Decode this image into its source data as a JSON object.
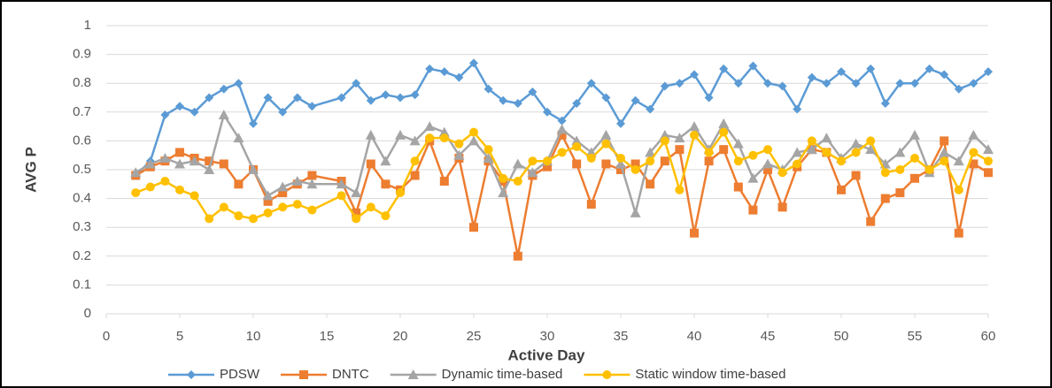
{
  "chart_data": {
    "type": "line",
    "x_label": "Active Day",
    "y_label": "AVG P",
    "x": [
      2,
      3,
      4,
      5,
      6,
      7,
      8,
      9,
      10,
      11,
      12,
      13,
      14,
      16,
      17,
      18,
      19,
      20,
      21,
      22,
      23,
      24,
      25,
      26,
      27,
      28,
      29,
      30,
      31,
      32,
      33,
      34,
      35,
      36,
      37,
      38,
      39,
      40,
      41,
      42,
      43,
      44,
      45,
      46,
      47,
      48,
      49,
      50,
      51,
      52,
      53,
      54,
      55,
      56,
      57,
      58,
      59,
      60
    ],
    "series": [
      {
        "name": "PDSW",
        "color": "#5b9bd5",
        "marker": "diamond",
        "values": [
          0.48,
          0.53,
          0.69,
          0.72,
          0.7,
          0.75,
          0.78,
          0.8,
          0.66,
          0.75,
          0.7,
          0.75,
          0.72,
          0.75,
          0.8,
          0.74,
          0.76,
          0.75,
          0.76,
          0.85,
          0.84,
          0.82,
          0.87,
          0.78,
          0.74,
          0.73,
          0.77,
          0.7,
          0.67,
          0.73,
          0.8,
          0.75,
          0.66,
          0.74,
          0.71,
          0.79,
          0.8,
          0.83,
          0.75,
          0.85,
          0.8,
          0.86,
          0.8,
          0.79,
          0.71,
          0.82,
          0.8,
          0.84,
          0.8,
          0.85,
          0.73,
          0.8,
          0.8,
          0.85,
          0.83,
          0.78,
          0.8,
          0.84
        ]
      },
      {
        "name": "DNTC",
        "color": "#ed7d31",
        "marker": "square",
        "values": [
          0.48,
          0.51,
          0.53,
          0.56,
          0.54,
          0.53,
          0.52,
          0.45,
          0.5,
          0.39,
          0.42,
          0.45,
          0.48,
          0.46,
          0.35,
          0.52,
          0.45,
          0.43,
          0.48,
          0.6,
          0.46,
          0.54,
          0.3,
          0.53,
          0.46,
          0.2,
          0.48,
          0.51,
          0.62,
          0.52,
          0.38,
          0.52,
          0.5,
          0.52,
          0.45,
          0.53,
          0.57,
          0.28,
          0.53,
          0.57,
          0.44,
          0.36,
          0.5,
          0.37,
          0.51,
          0.57,
          0.56,
          0.43,
          0.48,
          0.32,
          0.4,
          0.42,
          0.47,
          0.5,
          0.6,
          0.28,
          0.52,
          0.49
        ]
      },
      {
        "name": "Dynamic time-based",
        "color": "#a5a5a5",
        "marker": "triangle",
        "values": [
          0.49,
          0.52,
          0.54,
          0.52,
          0.53,
          0.5,
          0.69,
          0.61,
          0.5,
          0.41,
          0.44,
          0.46,
          0.45,
          0.45,
          0.42,
          0.62,
          0.53,
          0.62,
          0.6,
          0.65,
          0.63,
          0.55,
          0.6,
          0.54,
          0.42,
          0.52,
          0.49,
          0.53,
          0.64,
          0.6,
          0.56,
          0.62,
          0.52,
          0.35,
          0.56,
          0.62,
          0.61,
          0.65,
          0.57,
          0.66,
          0.59,
          0.47,
          0.52,
          0.5,
          0.56,
          0.57,
          0.61,
          0.54,
          0.59,
          0.57,
          0.52,
          0.56,
          0.62,
          0.49,
          0.56,
          0.53,
          0.62,
          0.57
        ]
      },
      {
        "name": "Static window time-based",
        "color": "#ffc000",
        "marker": "circle",
        "values": [
          0.42,
          0.44,
          0.46,
          0.43,
          0.41,
          0.33,
          0.37,
          0.34,
          0.33,
          0.35,
          0.37,
          0.38,
          0.36,
          0.41,
          0.33,
          0.37,
          0.34,
          0.42,
          0.53,
          0.61,
          0.61,
          0.59,
          0.63,
          0.57,
          0.47,
          0.46,
          0.53,
          0.53,
          0.56,
          0.58,
          0.54,
          0.59,
          0.54,
          0.5,
          0.53,
          0.6,
          0.43,
          0.62,
          0.56,
          0.63,
          0.53,
          0.55,
          0.57,
          0.49,
          0.52,
          0.6,
          0.56,
          0.53,
          0.56,
          0.6,
          0.49,
          0.5,
          0.54,
          0.5,
          0.53,
          0.43,
          0.56,
          0.53
        ]
      }
    ],
    "xlim": [
      0,
      60
    ],
    "xticks": [
      0,
      5,
      10,
      15,
      20,
      25,
      30,
      35,
      40,
      45,
      50,
      55,
      60
    ],
    "ylim": [
      0,
      1
    ],
    "yticks": [
      0,
      0.1,
      0.2,
      0.3,
      0.4,
      0.5,
      0.6,
      0.7,
      0.8,
      0.9,
      1
    ],
    "grid": true,
    "legend": "bottom"
  }
}
